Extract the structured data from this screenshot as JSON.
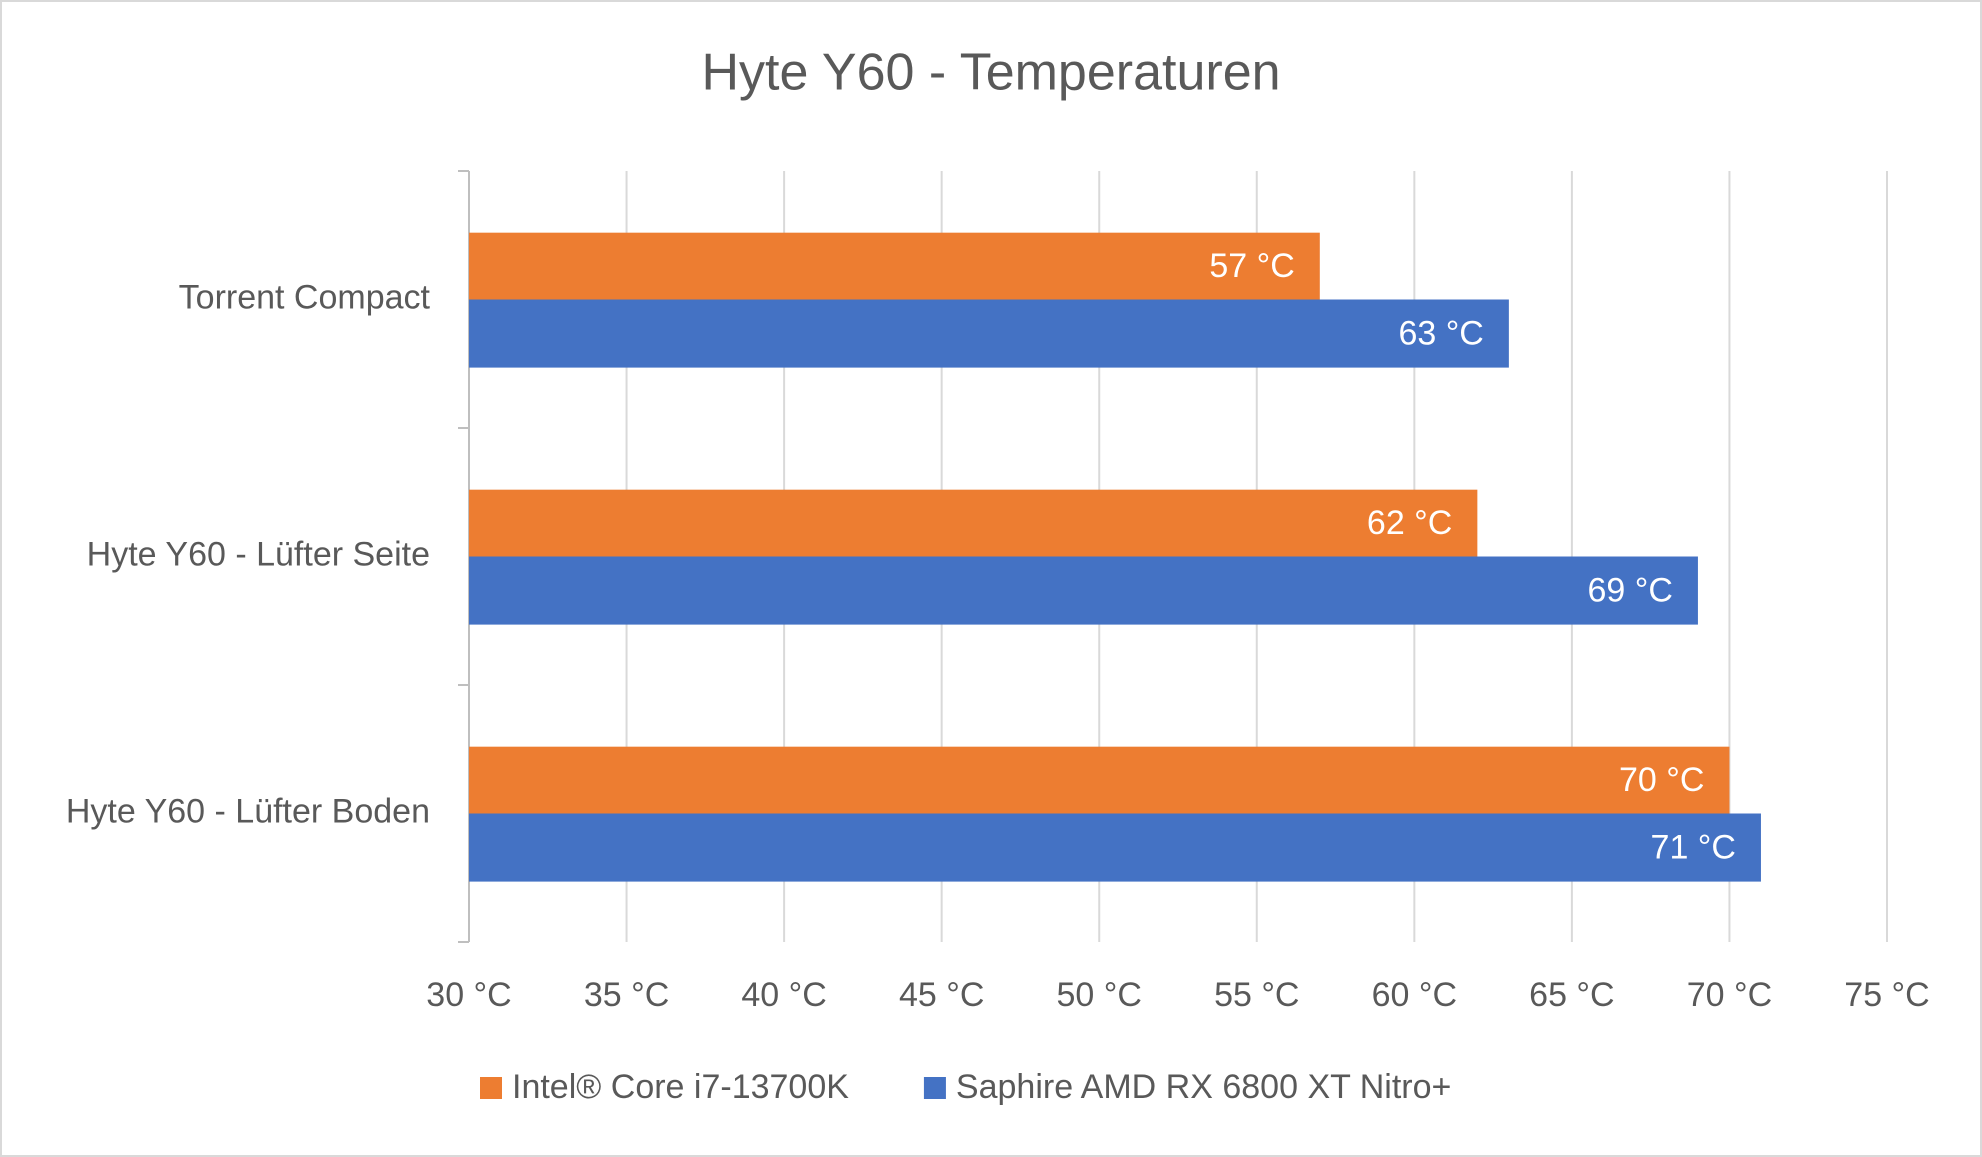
{
  "chart_data": {
    "type": "bar",
    "orientation": "horizontal",
    "title": "Hyte Y60 - Temperaturen",
    "categories": [
      "Torrent Compact",
      "Hyte Y60 - Lüfter Seite",
      "Hyte Y60 - Lüfter Boden"
    ],
    "series": [
      {
        "name": "Intel® Core i7-13700K",
        "color": "#ed7d31",
        "values": [
          57,
          62,
          70
        ],
        "value_labels": [
          "57 °C",
          "62 °C",
          "70 °C"
        ]
      },
      {
        "name": "Saphire AMD RX 6800 XT Nitro+",
        "color": "#4472c4",
        "values": [
          63,
          69,
          71
        ],
        "value_labels": [
          "63 °C",
          "69 °C",
          "71 °C"
        ]
      }
    ],
    "xlim": [
      30,
      75
    ],
    "xticks": [
      {
        "value": 30,
        "label": "30 °C"
      },
      {
        "value": 35,
        "label": "35 °C"
      },
      {
        "value": 40,
        "label": "40 °C"
      },
      {
        "value": 45,
        "label": "45 °C"
      },
      {
        "value": 50,
        "label": "50 °C"
      },
      {
        "value": 55,
        "label": "55 °C"
      },
      {
        "value": 60,
        "label": "60 °C"
      },
      {
        "value": 65,
        "label": "65 °C"
      },
      {
        "value": 70,
        "label": "70 °C"
      },
      {
        "value": 75,
        "label": "75 °C"
      }
    ],
    "grid": true,
    "legend": "bottom"
  }
}
